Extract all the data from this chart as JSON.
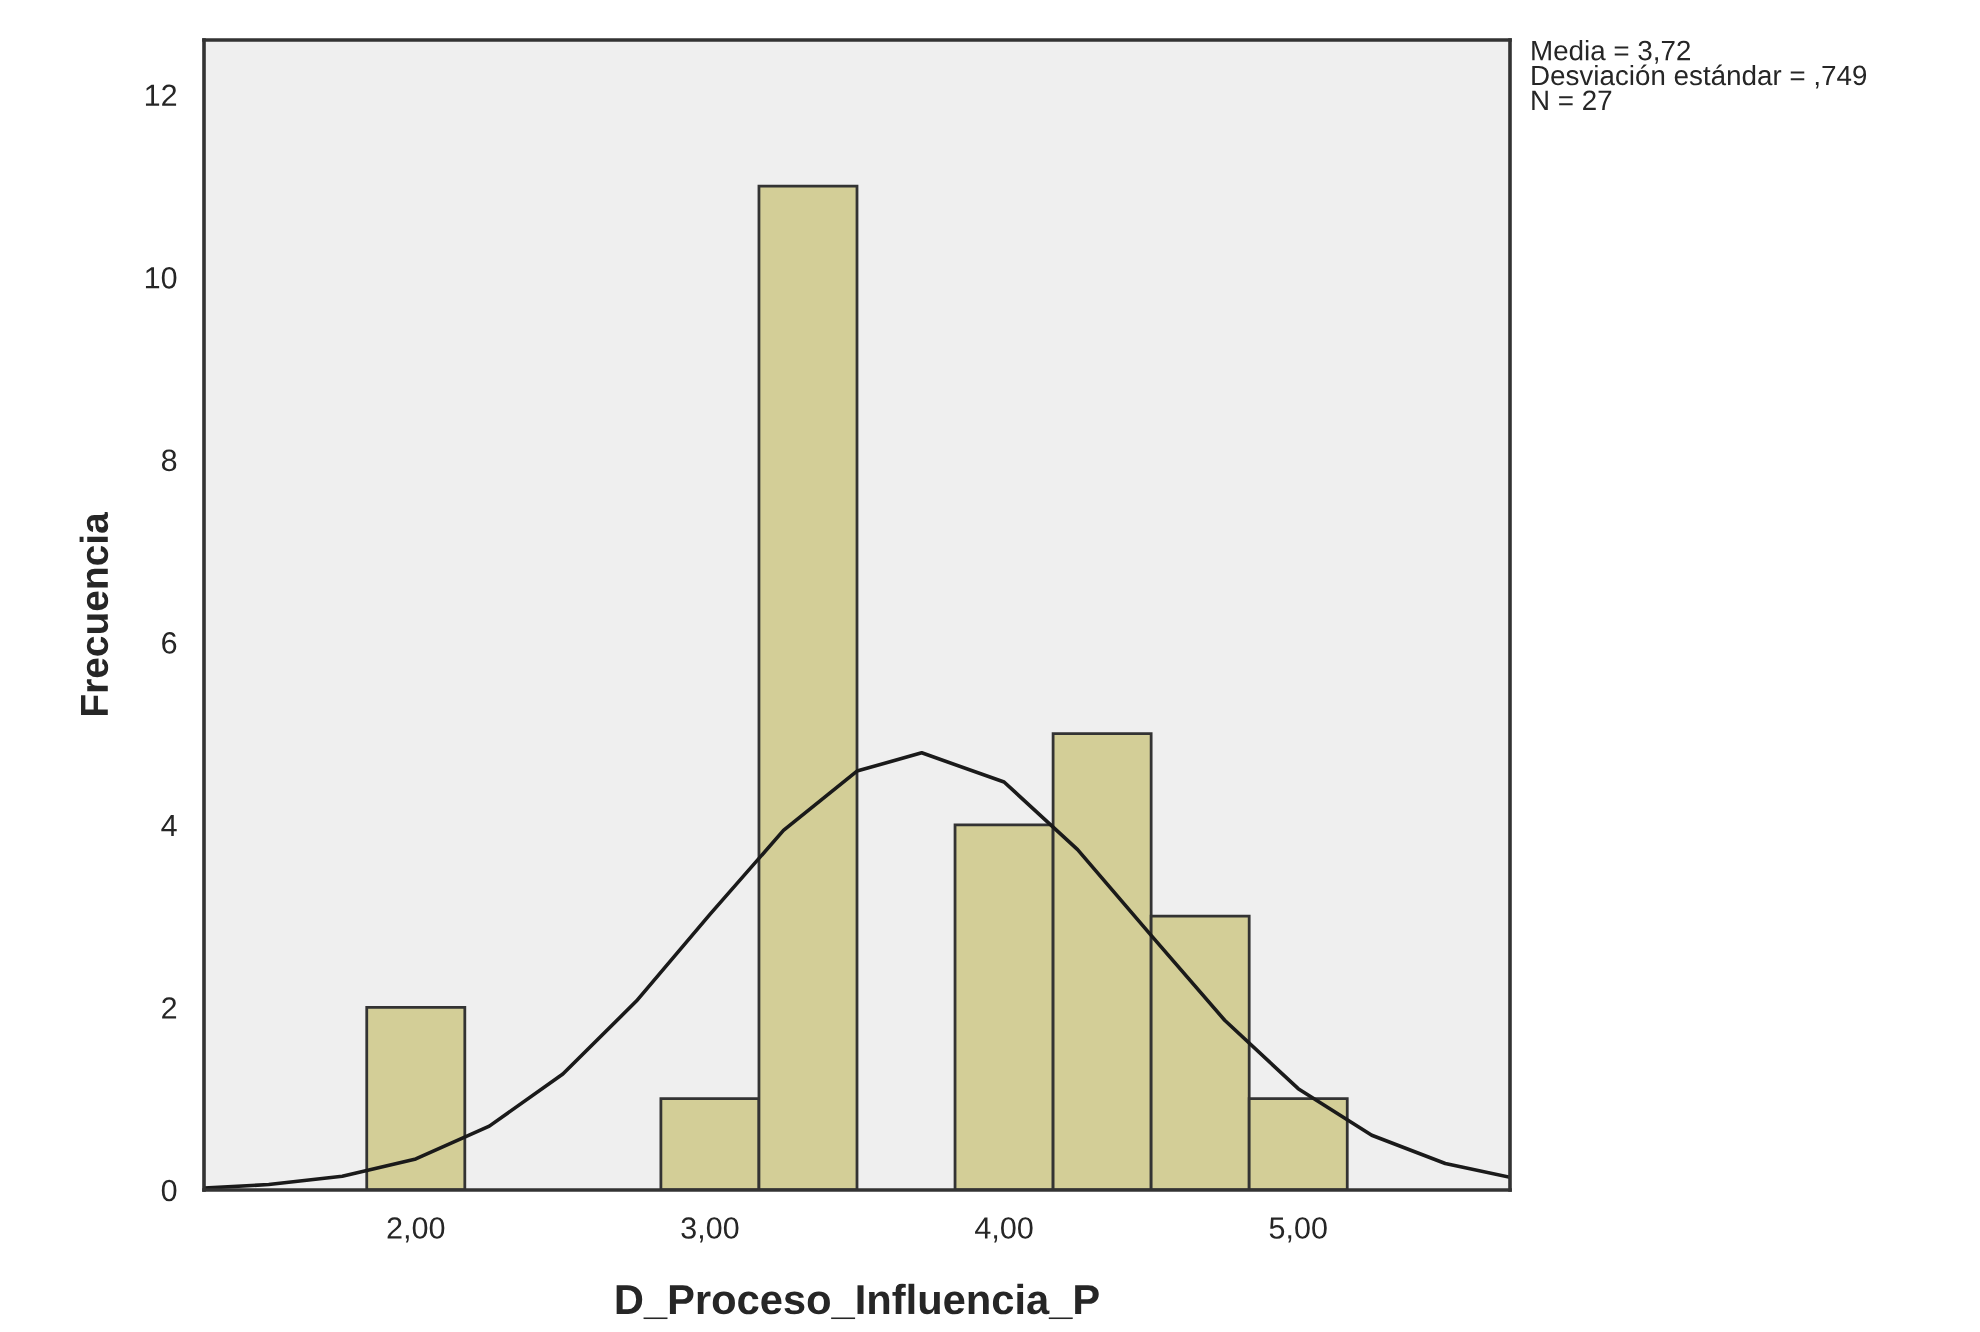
{
  "chart_data": {
    "type": "histogram",
    "xlabel": "D_Proceso_Influencia_P",
    "ylabel": "Frecuencia",
    "bins": [
      1.8333,
      2.1667,
      2.5,
      2.8333,
      3.1667,
      3.5,
      3.8333,
      4.1667,
      4.5,
      4.8333,
      5.1667
    ],
    "values": [
      2,
      0,
      0,
      1,
      11,
      0,
      4,
      5,
      3,
      1
    ],
    "color": "#d3ce97",
    "series": [
      {
        "type": "line",
        "color": "#1a1a1a",
        "x": [
          1.28,
          1.5,
          1.75,
          2.0,
          2.25,
          2.5,
          2.75,
          3.0,
          3.25,
          3.5,
          3.72,
          4.0,
          4.25,
          4.5,
          4.75,
          5.0,
          5.25,
          5.5,
          5.72
        ],
        "values": [
          0.02,
          0.06,
          0.15,
          0.34,
          0.7,
          1.27,
          2.07,
          3.02,
          3.94,
          4.59,
          4.79,
          4.47,
          3.73,
          2.79,
          1.86,
          1.11,
          0.6,
          0.29,
          0.14
        ]
      }
    ],
    "xlim": [
      1.28,
      5.72
    ],
    "xticks": [
      {
        "value": 2,
        "label": "2,00"
      },
      {
        "value": 3,
        "label": "3,00"
      },
      {
        "value": 4,
        "label": "4,00"
      },
      {
        "value": 5,
        "label": "5,00"
      }
    ],
    "ylim": [
      0,
      12.6
    ],
    "yticks": [
      0,
      2,
      4,
      6,
      8,
      10,
      12
    ],
    "grid": false,
    "annotations": [
      "Media = 3,72\nDesviación estándar = ,749\nN = 27"
    ]
  }
}
